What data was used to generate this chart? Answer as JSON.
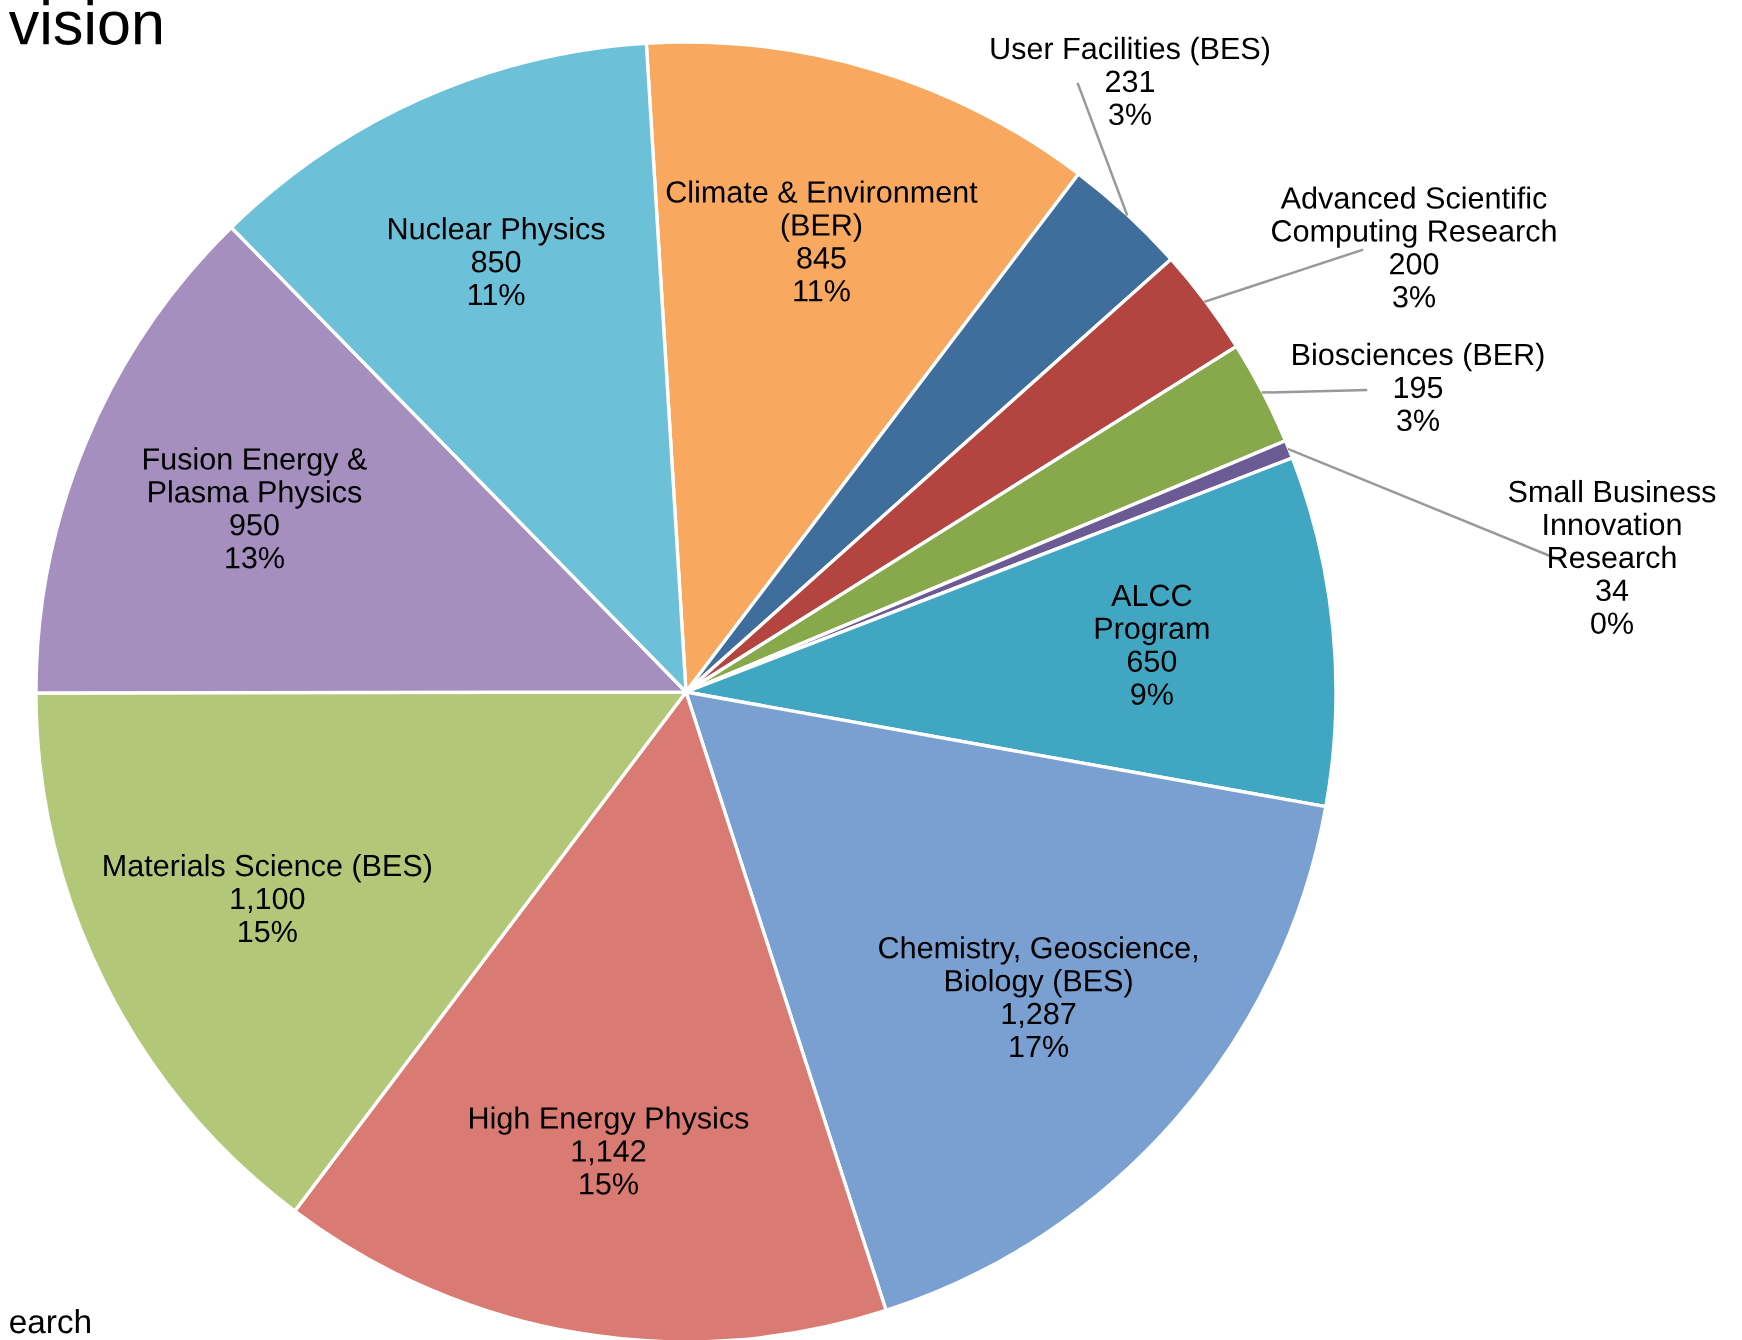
{
  "chart_data": {
    "type": "pie",
    "title": "vision",
    "annotations": [
      "earch"
    ],
    "categories": [
      "Climate & Environment\n(BER)",
      "User Facilities (BES)",
      "Advanced Scientific\nComputing Research",
      "Biosciences (BER)",
      "Small Business\nInnovation\nResearch",
      "ALCC\nProgram",
      "Chemistry, Geoscience,\nBiology (BES)",
      "High Energy Physics",
      "Materials Science (BES)",
      "Fusion Energy &\nPlasma Physics",
      "Nuclear Physics"
    ],
    "values": [
      845,
      231,
      200,
      195,
      34,
      650,
      1287,
      1142,
      1100,
      950,
      850
    ],
    "value_labels": [
      "845\n11%",
      "231\n3%",
      "200\n3%",
      "195\n3%",
      "34\n0%",
      "650\n9%",
      "1,287\n17%",
      "1,142\n15%",
      "1,100\n15%",
      "950\n13%",
      "850\n11%"
    ],
    "colors": [
      "#f9a860",
      "#3f6d9c",
      "#b3443f",
      "#87a94b",
      "#6c5a94",
      "#40a6c1",
      "#7a9fd1",
      "#d97b73",
      "#b2c878",
      "#a58fbf",
      "#6cc0d8"
    ]
  }
}
